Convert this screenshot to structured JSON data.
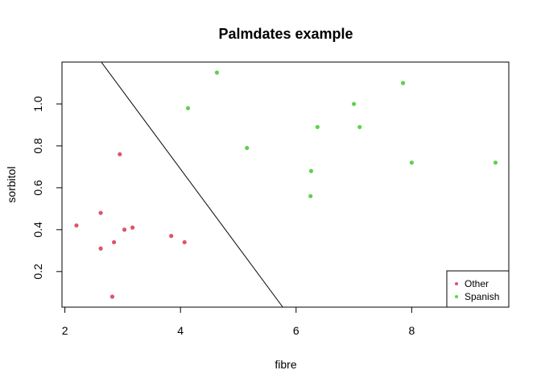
{
  "chart_data": {
    "type": "scatter",
    "title": "Palmdates example",
    "xlabel": "fibre",
    "ylabel": "sorbitol",
    "xlim": [
      1.95,
      9.68
    ],
    "ylim": [
      0.03,
      1.2
    ],
    "xticks": [
      2,
      4,
      6,
      8
    ],
    "xtick_labels": [
      "2",
      "4",
      "6",
      "8"
    ],
    "yticks": [
      0.2,
      0.4,
      0.6,
      0.8,
      1.0
    ],
    "ytick_labels": [
      "0.2",
      "0.4",
      "0.6",
      "0.8",
      "1.0"
    ],
    "grid": false,
    "legend_position": "bottom-right",
    "series": [
      {
        "name": "Other",
        "color": "#DF536B",
        "points": [
          [
            2.2,
            0.42
          ],
          [
            2.62,
            0.48
          ],
          [
            2.62,
            0.31
          ],
          [
            2.82,
            0.08
          ],
          [
            2.85,
            0.34
          ],
          [
            2.95,
            0.76
          ],
          [
            3.03,
            0.4
          ],
          [
            3.17,
            0.41
          ],
          [
            3.84,
            0.37
          ],
          [
            4.07,
            0.34
          ]
        ]
      },
      {
        "name": "Spanish",
        "color": "#61D04F",
        "points": [
          [
            4.13,
            0.98
          ],
          [
            4.63,
            1.15
          ],
          [
            5.15,
            0.79
          ],
          [
            6.25,
            0.56
          ],
          [
            6.26,
            0.68
          ],
          [
            6.37,
            0.89
          ],
          [
            7.0,
            1.0
          ],
          [
            7.1,
            0.89
          ],
          [
            7.85,
            1.1
          ],
          [
            8.0,
            0.72
          ],
          [
            9.45,
            0.72
          ]
        ]
      }
    ],
    "line": {
      "color": "#000000",
      "points": [
        [
          2.63,
          1.2
        ],
        [
          5.77,
          0.03
        ]
      ]
    }
  }
}
